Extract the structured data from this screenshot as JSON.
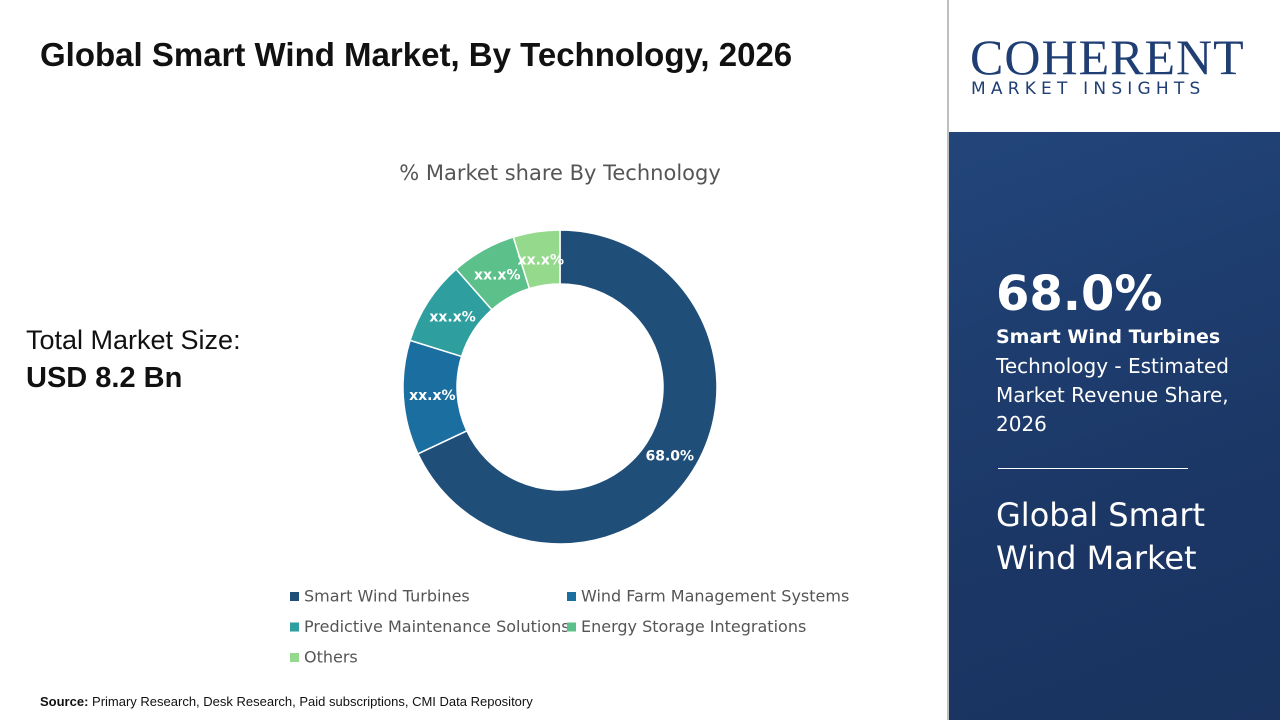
{
  "header": {
    "title": "Global Smart Wind Market, By Technology, 2026"
  },
  "market_size": {
    "label": "Total Market Size:",
    "value": "USD 8.2 Bn"
  },
  "chart_data": {
    "type": "donut",
    "title": "% Market share By Technology",
    "categories": [
      "Smart Wind Turbines",
      "Wind Farm Management Systems",
      "Predictive Maintenance Solutions",
      "Energy Storage Integrations",
      "Others"
    ],
    "values": [
      68.0,
      11.8,
      8.7,
      6.7,
      4.8
    ],
    "value_labels": [
      "68.0%",
      "xx.x%",
      "xx.x%",
      "xx.x%",
      "xx.x%"
    ],
    "colors": [
      "#1f4e79",
      "#1a6fa0",
      "#2e9e9e",
      "#5cc08a",
      "#95d98c"
    ]
  },
  "logo": {
    "name": "COHERENT",
    "tagline": "MARKET INSIGHTS"
  },
  "sidebar": {
    "value": "68.0%",
    "segment": "Smart Wind Turbines",
    "description": "Technology - Estimated Market Revenue Share, 2026",
    "market": "Global Smart Wind Market"
  },
  "source": {
    "label": "Source:",
    "text": "Primary Research, Desk Research, Paid subscriptions, CMI Data Repository"
  }
}
